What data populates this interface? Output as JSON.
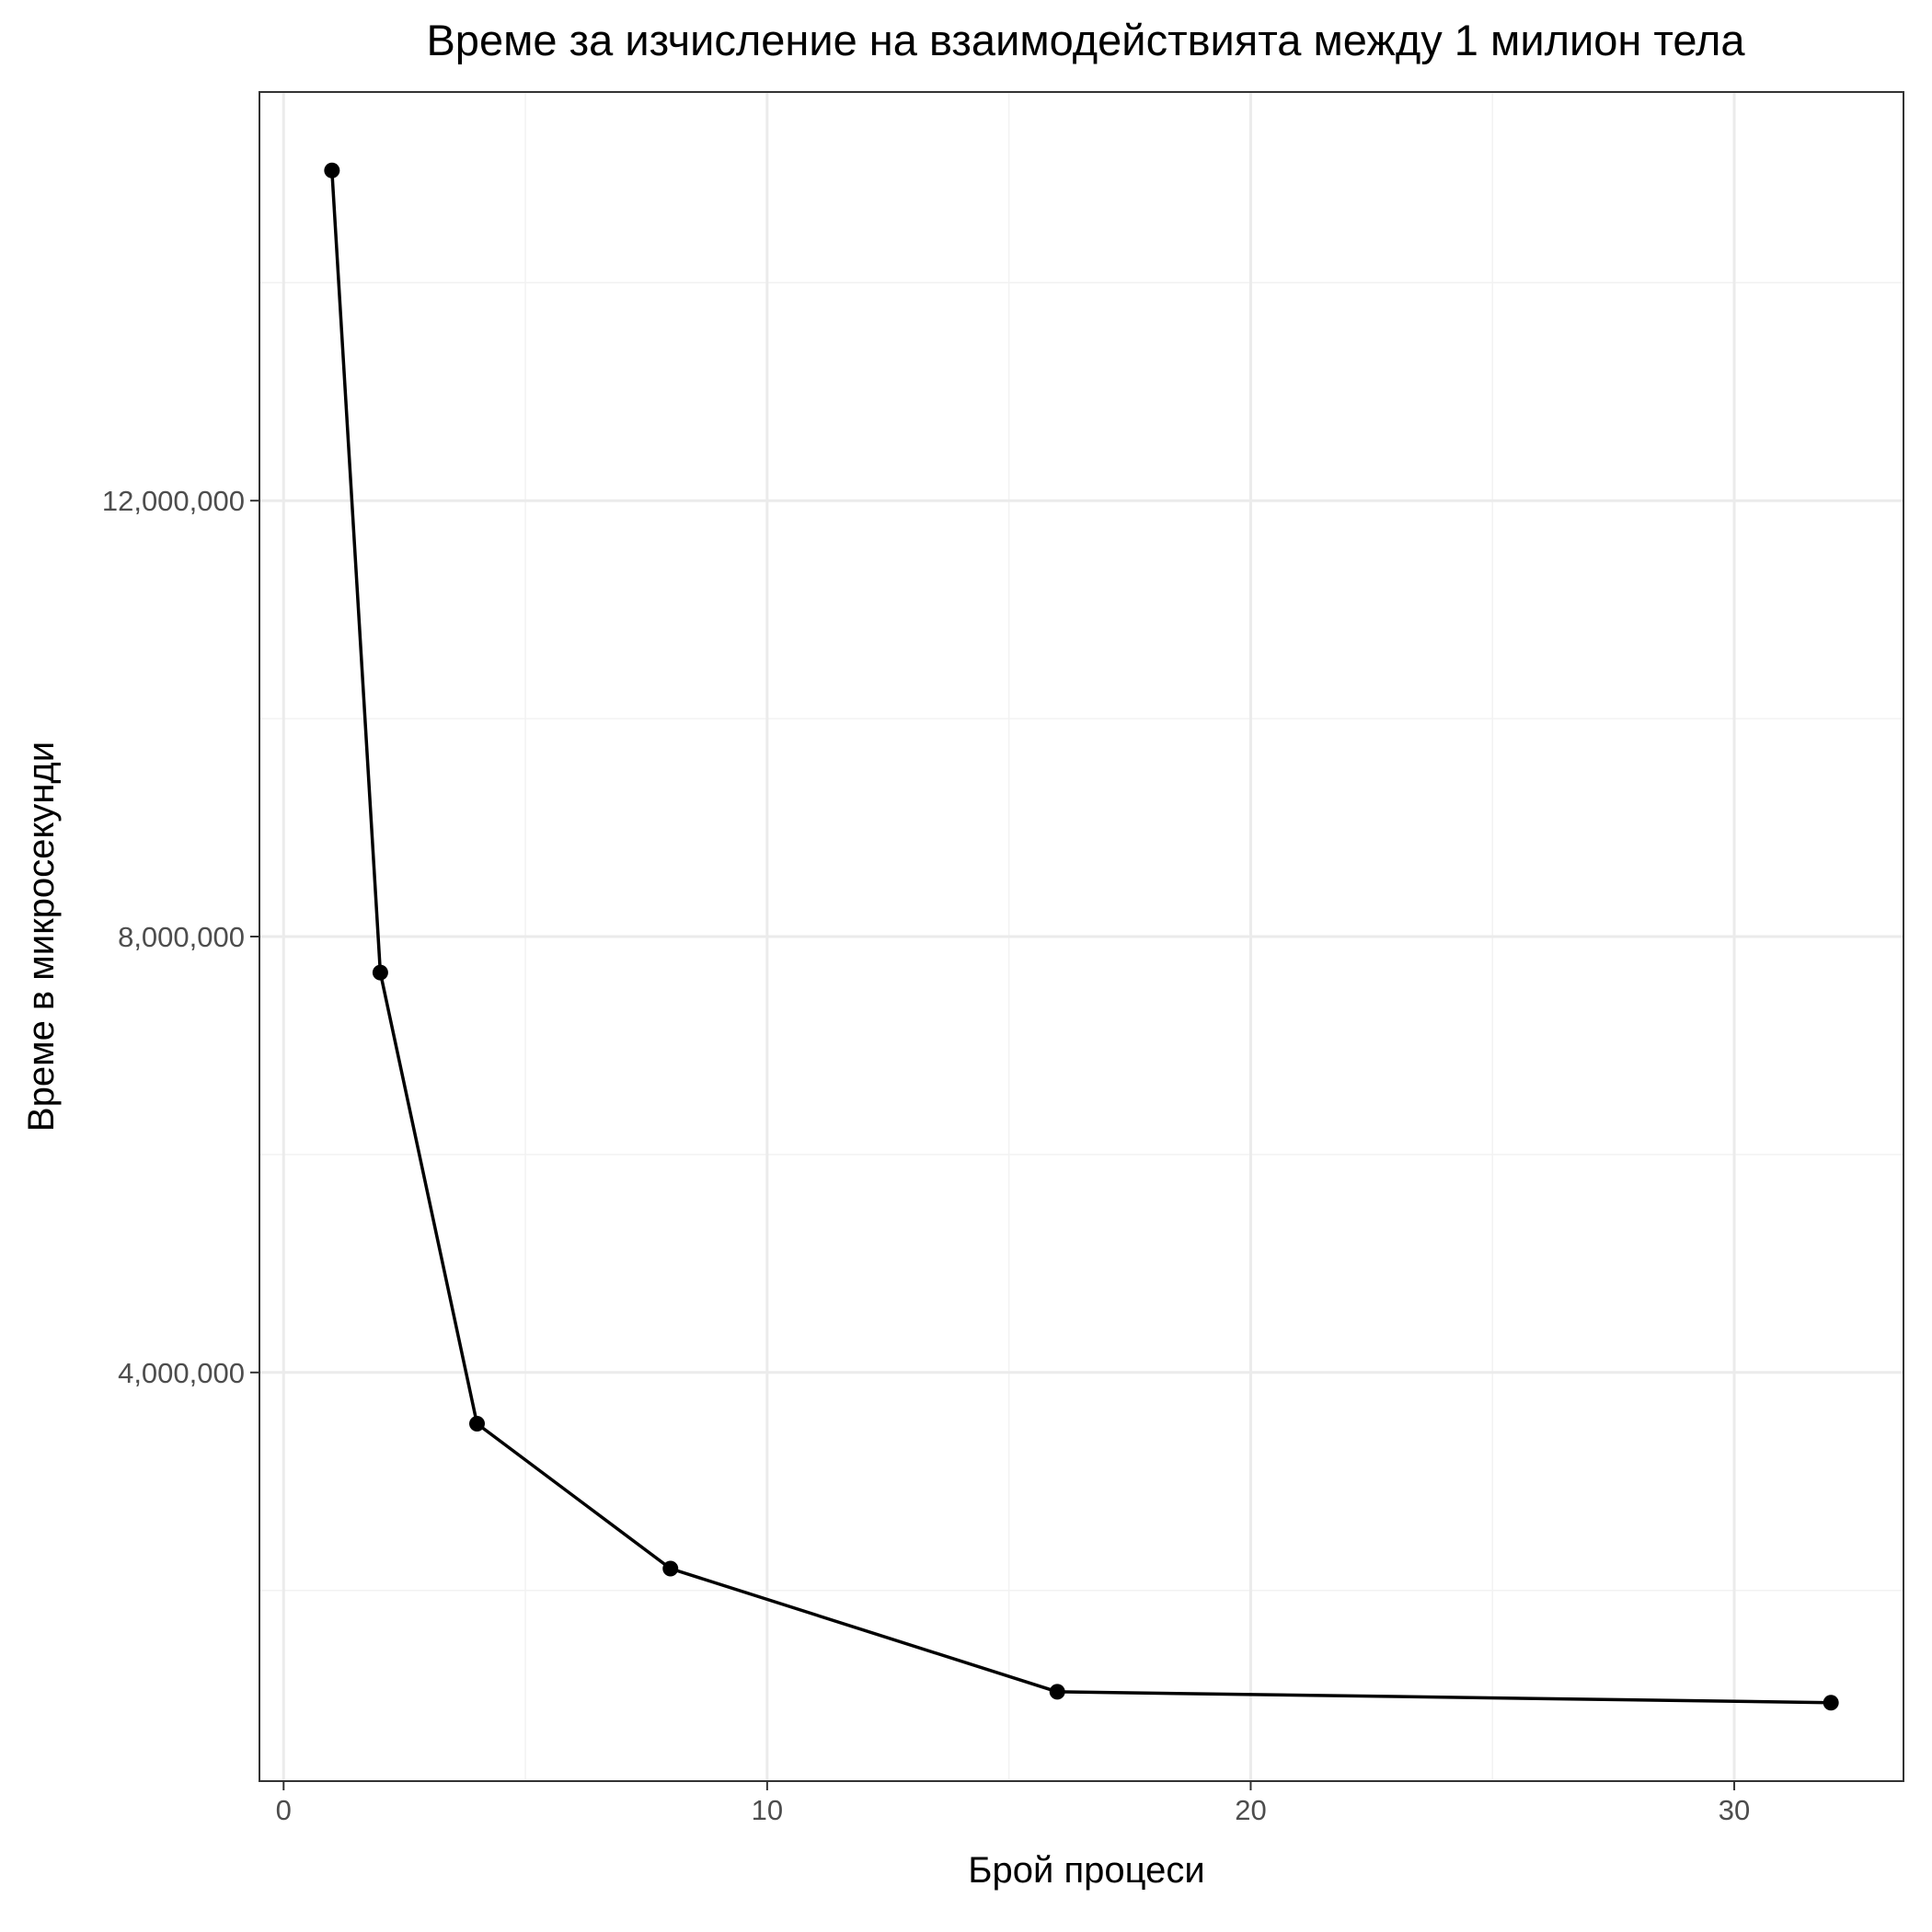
{
  "chart_data": {
    "type": "line",
    "title": "Време за изчисление на взаимодействията между 1 милион тела",
    "xlabel": "Брой процеси",
    "ylabel": "Време в микросекунди",
    "x": [
      1,
      2,
      4,
      8,
      16,
      32
    ],
    "y": [
      15030000,
      7670000,
      3530000,
      2200000,
      1070000,
      970000
    ],
    "xlim": [
      -0.5,
      33.5
    ],
    "ylim": [
      250000,
      15750000
    ],
    "x_ticks": [
      0,
      10,
      20,
      30
    ],
    "x_tick_labels": [
      "0",
      "10",
      "20",
      "30"
    ],
    "x_minor_ticks": [
      5,
      15,
      25
    ],
    "y_ticks": [
      4000000,
      8000000,
      12000000
    ],
    "y_tick_labels": [
      "4,000,000",
      "8,000,000",
      "12,000,000"
    ],
    "y_minor_ticks": [
      2000000,
      6000000,
      10000000,
      14000000
    ],
    "grid": true,
    "line_color": "#000000",
    "point_color": "#000000"
  }
}
